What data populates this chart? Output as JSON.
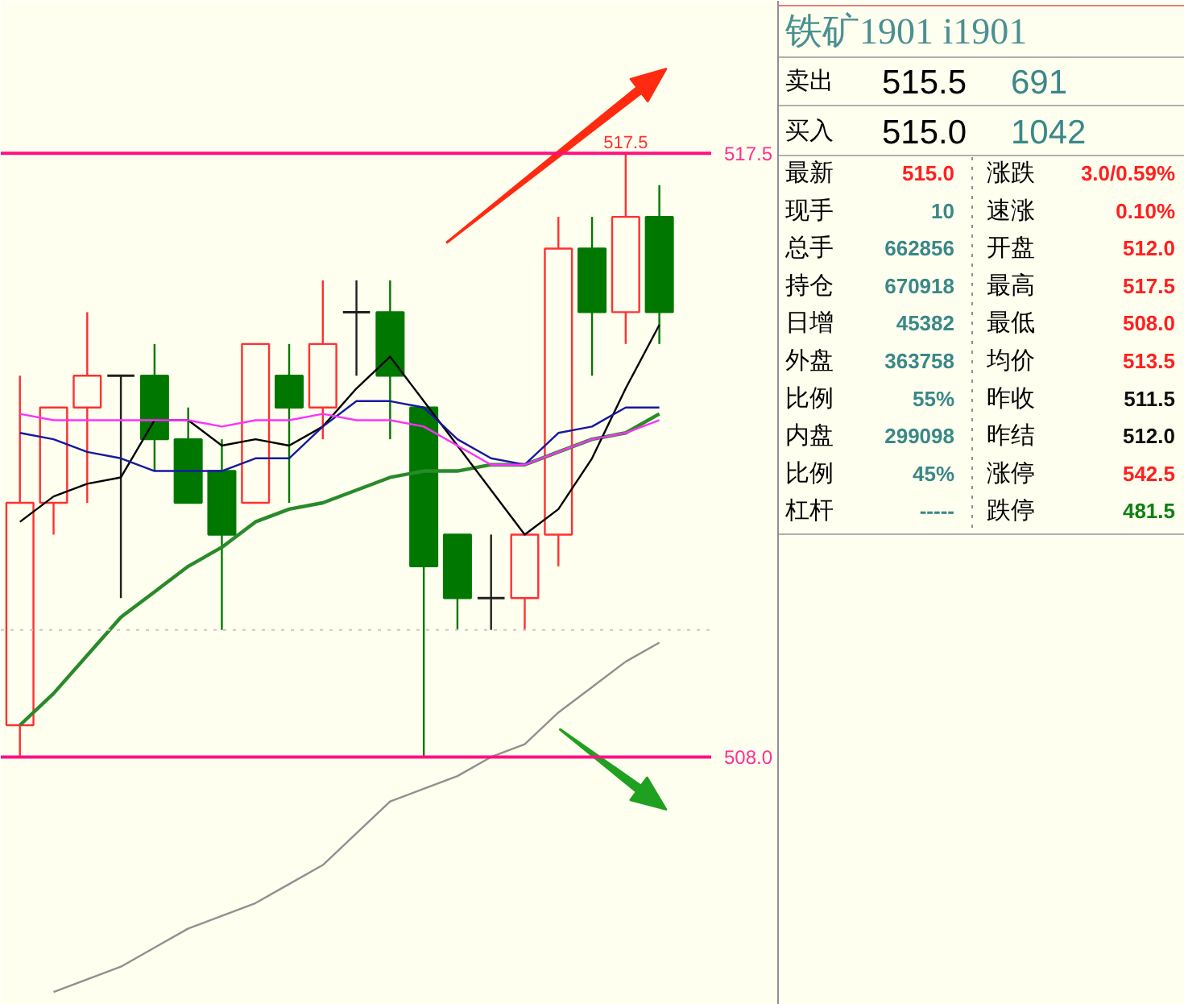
{
  "chart_data": [
    {
      "type": "candlestick",
      "categories": [
        null,
        null,
        null,
        null,
        null,
        null,
        null,
        null,
        null,
        null,
        null,
        null,
        null,
        null,
        null,
        null,
        null,
        null,
        null,
        null
      ],
      "ohlc": [
        [
          508.5,
          514.0,
          508.0,
          512.0
        ],
        [
          512.0,
          513.5,
          511.5,
          513.5
        ],
        [
          513.5,
          515.0,
          512.0,
          514.0
        ],
        [
          514.0,
          514.0,
          510.5,
          514.0
        ],
        [
          514.0,
          514.5,
          512.5,
          513.0
        ],
        [
          513.0,
          513.5,
          512.0,
          512.0
        ],
        [
          512.5,
          513.0,
          510.0,
          511.5
        ],
        [
          512.0,
          514.5,
          512.0,
          514.5
        ],
        [
          514.0,
          514.5,
          512.0,
          513.5
        ],
        [
          513.5,
          515.5,
          513.0,
          514.5
        ],
        [
          515.0,
          515.5,
          514.0,
          515.0
        ],
        [
          515.0,
          515.5,
          513.0,
          514.0
        ],
        [
          513.5,
          513.5,
          508.0,
          511.0
        ],
        [
          511.5,
          511.5,
          510.0,
          510.5
        ],
        [
          510.5,
          511.5,
          510.0,
          510.5
        ],
        [
          510.5,
          511.5,
          510.0,
          511.5
        ],
        [
          511.5,
          516.5,
          511.0,
          516.0
        ],
        [
          516.0,
          516.5,
          514.0,
          515.0
        ],
        [
          515.0,
          517.5,
          514.5,
          516.5
        ],
        [
          516.5,
          517.0,
          514.5,
          515.0
        ]
      ],
      "series": [
        {
          "type": "line",
          "color": "#000000",
          "values": [
            511.7,
            512.1,
            512.3,
            512.4,
            513.3,
            513.3,
            512.9,
            513.0,
            512.9,
            513.2,
            513.8,
            514.3,
            513.6,
            512.9,
            512.2,
            511.5,
            511.9,
            512.7,
            513.8,
            514.8
          ]
        },
        {
          "type": "line",
          "color": "#1818a0",
          "values": [
            513.1,
            513.0,
            512.8,
            512.7,
            512.5,
            512.5,
            512.5,
            512.7,
            512.7,
            513.2,
            513.6,
            513.6,
            513.5,
            513.0,
            512.7,
            512.6,
            513.1,
            513.2,
            513.5,
            513.5
          ]
        },
        {
          "type": "line",
          "color": "#ff30ff",
          "values": [
            513.4,
            513.3,
            513.3,
            513.3,
            513.3,
            513.3,
            513.2,
            513.3,
            513.3,
            513.4,
            513.3,
            513.3,
            513.2,
            512.9,
            512.6,
            512.6,
            512.8,
            513.0,
            513.1,
            513.3
          ]
        },
        {
          "type": "line",
          "color": "#2a8a2a",
          "values": [
            508.5,
            509.0,
            509.6,
            510.2,
            510.6,
            511.0,
            511.3,
            511.7,
            511.9,
            512.0,
            512.2,
            512.4,
            512.5,
            512.5,
            512.6,
            512.6,
            512.8,
            513.0,
            513.1,
            513.4
          ]
        },
        {
          "type": "line",
          "color": "#909090",
          "values": [
            null,
            504.3,
            504.5,
            504.7,
            505.0,
            505.3,
            505.5,
            505.7,
            506.0,
            506.3,
            506.8,
            507.3,
            507.5,
            507.7,
            508.0,
            508.2,
            508.7,
            509.1,
            509.5,
            509.8
          ]
        }
      ],
      "ylim": [
        504.1,
        519.9
      ],
      "yticks": [
        {
          "value": 508.0,
          "label": "508.0"
        },
        {
          "value": 517.5,
          "label": "517.5"
        }
      ],
      "tick_labels": "y",
      "ref_lines": [
        {
          "axis": "y",
          "value": 517.5,
          "label": null,
          "color": "#ff1080",
          "line_style": "solid"
        },
        {
          "axis": "y",
          "value": 508.0,
          "label": null,
          "color": "#ff1080",
          "line_style": "solid"
        },
        {
          "axis": "y",
          "value": 510.0,
          "label": null,
          "color": "#c8c8c8",
          "line_style": "dotted"
        }
      ],
      "annotations": [
        {
          "text": "517.5",
          "y": 517.5
        }
      ],
      "line_style": "solid",
      "marker": "none"
    },
    {
      "type": "other",
      "title": "铁矿1901  i1901",
      "annotations": [
        "卖出",
        "515.5",
        "691",
        "买入",
        "515.0",
        "1042",
        "最新",
        "515.0",
        "涨跌",
        "3.0/0.59%",
        "现手",
        "10",
        "速涨",
        "0.10%",
        "总手",
        "662856",
        "开盘",
        "512.0",
        "持仓",
        "670918",
        "最高",
        "517.5",
        "日增",
        "45382",
        "最低",
        "508.0",
        "外盘",
        "363758",
        "均价",
        "513.5",
        "比例",
        "55%",
        "昨收",
        "511.5",
        "内盘",
        "299098",
        "昨结",
        "512.0",
        "比例",
        "45%",
        "涨停",
        "542.5",
        "杠杆",
        "-----",
        "跌停",
        "481.5"
      ]
    }
  ]
}
